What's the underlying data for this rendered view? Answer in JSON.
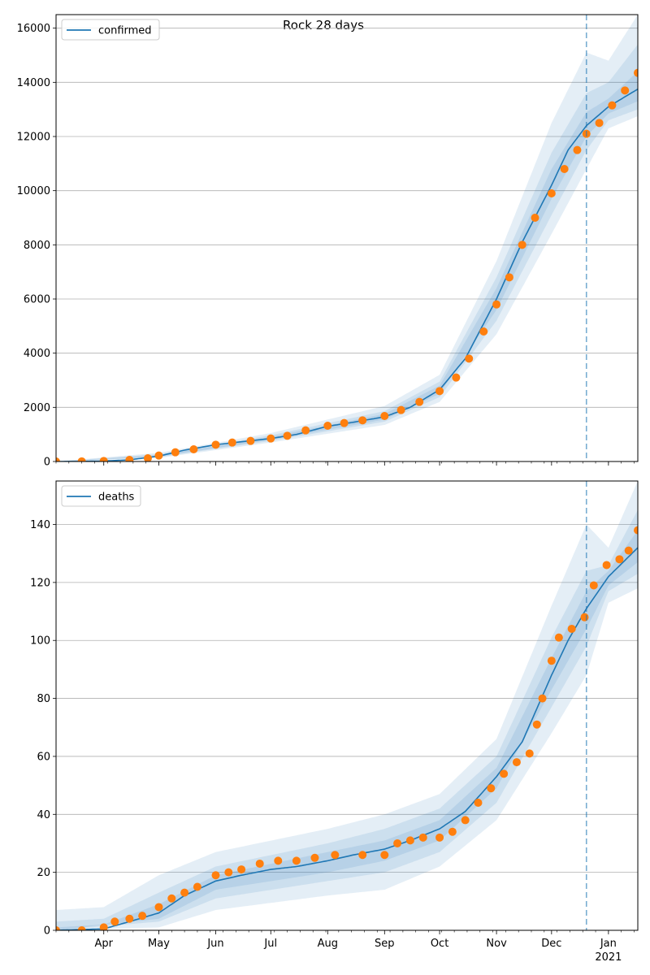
{
  "title": "Rock 28 days",
  "colors": {
    "model_line": "#1f77b4",
    "observed_points": "#ff7f0e",
    "band": "#1f77b4",
    "grid": "#b0b0b0",
    "forecast_marker": "#1f77b4"
  },
  "x_axis": {
    "start_date": "2020-03-06",
    "end_date": "2021-01-17",
    "forecast_start": "2020-12-20",
    "month_ticks": [
      {
        "date": "2020-04-01",
        "label": "Apr",
        "label2": ""
      },
      {
        "date": "2020-05-01",
        "label": "May",
        "label2": ""
      },
      {
        "date": "2020-06-01",
        "label": "Jun",
        "label2": ""
      },
      {
        "date": "2020-07-01",
        "label": "Jul",
        "label2": ""
      },
      {
        "date": "2020-08-01",
        "label": "Aug",
        "label2": ""
      },
      {
        "date": "2020-09-01",
        "label": "Sep",
        "label2": ""
      },
      {
        "date": "2020-10-01",
        "label": "Oct",
        "label2": ""
      },
      {
        "date": "2020-11-01",
        "label": "Nov",
        "label2": ""
      },
      {
        "date": "2020-12-01",
        "label": "Dec",
        "label2": ""
      },
      {
        "date": "2021-01-01",
        "label": "Jan",
        "label2": "2021"
      }
    ]
  },
  "chart_data": [
    {
      "type": "line",
      "legend": "confirmed",
      "legend_position": "top-left",
      "grid": "horizontal",
      "ylim": [
        0,
        16500
      ],
      "yticks": [
        0,
        2000,
        4000,
        6000,
        8000,
        10000,
        12000,
        14000,
        16000
      ],
      "model": [
        [
          "2020-03-06",
          0
        ],
        [
          "2020-03-20",
          5
        ],
        [
          "2020-04-01",
          20
        ],
        [
          "2020-04-15",
          60
        ],
        [
          "2020-05-01",
          200
        ],
        [
          "2020-05-15",
          420
        ],
        [
          "2020-06-01",
          620
        ],
        [
          "2020-06-15",
          730
        ],
        [
          "2020-07-01",
          850
        ],
        [
          "2020-07-15",
          1000
        ],
        [
          "2020-08-01",
          1300
        ],
        [
          "2020-08-15",
          1450
        ],
        [
          "2020-09-01",
          1650
        ],
        [
          "2020-09-15",
          2000
        ],
        [
          "2020-10-01",
          2650
        ],
        [
          "2020-10-15",
          3800
        ],
        [
          "2020-11-01",
          6000
        ],
        [
          "2020-11-15",
          8100
        ],
        [
          "2020-12-01",
          10200
        ],
        [
          "2020-12-10",
          11500
        ],
        [
          "2020-12-20",
          12400
        ],
        [
          "2021-01-01",
          13100
        ],
        [
          "2021-01-17",
          13750
        ]
      ],
      "observed": [
        [
          "2020-03-06",
          0
        ],
        [
          "2020-03-20",
          5
        ],
        [
          "2020-04-01",
          20
        ],
        [
          "2020-04-15",
          60
        ],
        [
          "2020-04-25",
          120
        ],
        [
          "2020-05-01",
          220
        ],
        [
          "2020-05-10",
          340
        ],
        [
          "2020-05-20",
          450
        ],
        [
          "2020-06-01",
          620
        ],
        [
          "2020-06-10",
          700
        ],
        [
          "2020-06-20",
          760
        ],
        [
          "2020-07-01",
          850
        ],
        [
          "2020-07-10",
          950
        ],
        [
          "2020-07-20",
          1150
        ],
        [
          "2020-08-01",
          1320
        ],
        [
          "2020-08-10",
          1420
        ],
        [
          "2020-08-20",
          1520
        ],
        [
          "2020-09-01",
          1680
        ],
        [
          "2020-09-10",
          1900
        ],
        [
          "2020-09-20",
          2200
        ],
        [
          "2020-10-01",
          2600
        ],
        [
          "2020-10-10",
          3100
        ],
        [
          "2020-10-17",
          3800
        ],
        [
          "2020-10-25",
          4800
        ],
        [
          "2020-11-01",
          5800
        ],
        [
          "2020-11-08",
          6800
        ],
        [
          "2020-11-15",
          8000
        ],
        [
          "2020-11-22",
          9000
        ],
        [
          "2020-12-01",
          9900
        ],
        [
          "2020-12-08",
          10800
        ],
        [
          "2020-12-15",
          11500
        ],
        [
          "2020-12-20",
          12100
        ],
        [
          "2020-12-27",
          12500
        ],
        [
          "2021-01-03",
          13150
        ],
        [
          "2021-01-10",
          13700
        ],
        [
          "2021-01-17",
          14350
        ]
      ],
      "bands": [
        {
          "level": "outer",
          "lower": [
            [
              "2020-03-06",
              0
            ],
            [
              "2020-05-01",
              130
            ],
            [
              "2020-07-01",
              700
            ],
            [
              "2020-09-01",
              1350
            ],
            [
              "2020-10-01",
              2200
            ],
            [
              "2020-11-01",
              4700
            ],
            [
              "2020-12-01",
              8400
            ],
            [
              "2020-12-20",
              10800
            ],
            [
              "2021-01-01",
              12300
            ],
            [
              "2021-01-17",
              12750
            ]
          ],
          "upper": [
            [
              "2020-03-06",
              0
            ],
            [
              "2020-05-01",
              320
            ],
            [
              "2020-07-01",
              1050
            ],
            [
              "2020-09-01",
              2050
            ],
            [
              "2020-10-01",
              3200
            ],
            [
              "2020-11-01",
              7400
            ],
            [
              "2020-12-01",
              12500
            ],
            [
              "2020-12-20",
              15100
            ],
            [
              "2021-01-01",
              14800
            ],
            [
              "2021-01-17",
              16500
            ]
          ]
        },
        {
          "level": "middle",
          "lower": [
            [
              "2020-03-06",
              0
            ],
            [
              "2020-05-01",
              160
            ],
            [
              "2020-07-01",
              760
            ],
            [
              "2020-09-01",
              1470
            ],
            [
              "2020-10-01",
              2380
            ],
            [
              "2020-11-01",
              5200
            ],
            [
              "2020-12-01",
              9100
            ],
            [
              "2020-12-20",
              11500
            ],
            [
              "2021-01-01",
              12600
            ],
            [
              "2021-01-17",
              13000
            ]
          ],
          "upper": [
            [
              "2020-03-06",
              0
            ],
            [
              "2020-05-01",
              270
            ],
            [
              "2020-07-01",
              970
            ],
            [
              "2020-09-01",
              1860
            ],
            [
              "2020-10-01",
              2950
            ],
            [
              "2020-11-01",
              6800
            ],
            [
              "2020-12-01",
              11400
            ],
            [
              "2020-12-20",
              13600
            ],
            [
              "2021-01-01",
              14000
            ],
            [
              "2021-01-17",
              15400
            ]
          ]
        },
        {
          "level": "inner",
          "lower": [
            [
              "2020-03-06",
              0
            ],
            [
              "2020-05-01",
              180
            ],
            [
              "2020-07-01",
              800
            ],
            [
              "2020-09-01",
              1550
            ],
            [
              "2020-10-01",
              2500
            ],
            [
              "2020-11-01",
              5600
            ],
            [
              "2020-12-01",
              9700
            ],
            [
              "2020-12-20",
              12000
            ],
            [
              "2021-01-01",
              12850
            ],
            [
              "2021-01-17",
              13300
            ]
          ],
          "upper": [
            [
              "2020-03-06",
              0
            ],
            [
              "2020-05-01",
              230
            ],
            [
              "2020-07-01",
              910
            ],
            [
              "2020-09-01",
              1760
            ],
            [
              "2020-10-01",
              2800
            ],
            [
              "2020-11-01",
              6400
            ],
            [
              "2020-12-01",
              10800
            ],
            [
              "2020-12-20",
              12900
            ],
            [
              "2021-01-01",
              13400
            ],
            [
              "2021-01-17",
              14400
            ]
          ]
        }
      ]
    },
    {
      "type": "line",
      "legend": "deaths",
      "legend_position": "top-left",
      "grid": "horizontal",
      "ylim": [
        0,
        155
      ],
      "yticks": [
        0,
        20,
        40,
        60,
        80,
        100,
        120,
        140
      ],
      "model": [
        [
          "2020-03-06",
          0
        ],
        [
          "2020-04-01",
          0.5
        ],
        [
          "2020-04-15",
          3
        ],
        [
          "2020-05-01",
          6
        ],
        [
          "2020-05-15",
          12
        ],
        [
          "2020-06-01",
          17
        ],
        [
          "2020-06-15",
          19
        ],
        [
          "2020-07-01",
          21
        ],
        [
          "2020-07-15",
          22
        ],
        [
          "2020-08-01",
          24
        ],
        [
          "2020-08-15",
          26
        ],
        [
          "2020-09-01",
          28
        ],
        [
          "2020-09-15",
          31
        ],
        [
          "2020-10-01",
          35
        ],
        [
          "2020-10-15",
          41
        ],
        [
          "2020-11-01",
          53
        ],
        [
          "2020-11-15",
          65
        ],
        [
          "2020-12-01",
          88
        ],
        [
          "2020-12-10",
          100
        ],
        [
          "2020-12-20",
          111
        ],
        [
          "2021-01-01",
          122
        ],
        [
          "2021-01-17",
          132
        ]
      ],
      "observed": [
        [
          "2020-03-06",
          0
        ],
        [
          "2020-03-20",
          0
        ],
        [
          "2020-04-01",
          1
        ],
        [
          "2020-04-07",
          3
        ],
        [
          "2020-04-15",
          4
        ],
        [
          "2020-04-22",
          5
        ],
        [
          "2020-05-01",
          8
        ],
        [
          "2020-05-08",
          11
        ],
        [
          "2020-05-15",
          13
        ],
        [
          "2020-05-22",
          15
        ],
        [
          "2020-06-01",
          19
        ],
        [
          "2020-06-08",
          20
        ],
        [
          "2020-06-15",
          21
        ],
        [
          "2020-06-25",
          23
        ],
        [
          "2020-07-05",
          24
        ],
        [
          "2020-07-15",
          24
        ],
        [
          "2020-07-25",
          25
        ],
        [
          "2020-08-05",
          26
        ],
        [
          "2020-08-20",
          26
        ],
        [
          "2020-09-01",
          26
        ],
        [
          "2020-09-08",
          30
        ],
        [
          "2020-09-15",
          31
        ],
        [
          "2020-09-22",
          32
        ],
        [
          "2020-10-01",
          32
        ],
        [
          "2020-10-08",
          34
        ],
        [
          "2020-10-15",
          38
        ],
        [
          "2020-10-22",
          44
        ],
        [
          "2020-10-29",
          49
        ],
        [
          "2020-11-05",
          54
        ],
        [
          "2020-11-12",
          58
        ],
        [
          "2020-11-19",
          61
        ],
        [
          "2020-11-23",
          71
        ],
        [
          "2020-11-26",
          80
        ],
        [
          "2020-12-01",
          93
        ],
        [
          "2020-12-05",
          101
        ],
        [
          "2020-12-12",
          104
        ],
        [
          "2020-12-19",
          108
        ],
        [
          "2020-12-24",
          119
        ],
        [
          "2020-12-31",
          126
        ],
        [
          "2021-01-07",
          128
        ],
        [
          "2021-01-12",
          131
        ],
        [
          "2021-01-17",
          138
        ]
      ],
      "bands": [
        {
          "level": "outer",
          "lower": [
            [
              "2020-03-06",
              0
            ],
            [
              "2020-05-01",
              1
            ],
            [
              "2020-06-01",
              7
            ],
            [
              "2020-08-01",
              12
            ],
            [
              "2020-09-01",
              14
            ],
            [
              "2020-10-01",
              22
            ],
            [
              "2020-11-01",
              38
            ],
            [
              "2020-12-01",
              68
            ],
            [
              "2020-12-20",
              88
            ],
            [
              "2021-01-01",
              113
            ],
            [
              "2021-01-17",
              118
            ]
          ],
          "upper": [
            [
              "2020-03-06",
              7
            ],
            [
              "2020-04-01",
              8
            ],
            [
              "2020-05-01",
              19
            ],
            [
              "2020-06-01",
              27
            ],
            [
              "2020-08-01",
              35
            ],
            [
              "2020-09-01",
              40
            ],
            [
              "2020-10-01",
              47
            ],
            [
              "2020-11-01",
              66
            ],
            [
              "2020-12-01",
              112
            ],
            [
              "2020-12-20",
              140
            ],
            [
              "2021-01-01",
              132
            ],
            [
              "2021-01-17",
              155
            ]
          ]
        },
        {
          "level": "middle",
          "lower": [
            [
              "2020-03-06",
              0
            ],
            [
              "2020-05-01",
              3
            ],
            [
              "2020-06-01",
              11
            ],
            [
              "2020-08-01",
              17
            ],
            [
              "2020-09-01",
              20
            ],
            [
              "2020-10-01",
              27
            ],
            [
              "2020-11-01",
              44
            ],
            [
              "2020-12-01",
              77
            ],
            [
              "2020-12-20",
              98
            ],
            [
              "2021-01-01",
              117
            ],
            [
              "2021-01-17",
              123
            ]
          ],
          "upper": [
            [
              "2020-03-06",
              3
            ],
            [
              "2020-04-01",
              4
            ],
            [
              "2020-05-01",
              13
            ],
            [
              "2020-06-01",
              22
            ],
            [
              "2020-08-01",
              30
            ],
            [
              "2020-09-01",
              35
            ],
            [
              "2020-10-01",
              42
            ],
            [
              "2020-11-01",
              60
            ],
            [
              "2020-12-01",
              101
            ],
            [
              "2020-12-20",
              124
            ],
            [
              "2021-01-01",
              126
            ],
            [
              "2021-01-17",
              145
            ]
          ]
        },
        {
          "level": "inner",
          "lower": [
            [
              "2020-03-06",
              0
            ],
            [
              "2020-05-01",
              4
            ],
            [
              "2020-06-01",
              14
            ],
            [
              "2020-08-01",
              20
            ],
            [
              "2020-09-01",
              24
            ],
            [
              "2020-10-01",
              31
            ],
            [
              "2020-11-01",
              49
            ],
            [
              "2020-12-01",
              83
            ],
            [
              "2020-12-20",
              104
            ],
            [
              "2021-01-01",
              119
            ],
            [
              "2021-01-17",
              127
            ]
          ],
          "upper": [
            [
              "2020-03-06",
              1
            ],
            [
              "2020-04-01",
              2
            ],
            [
              "2020-05-01",
              9
            ],
            [
              "2020-06-01",
              19
            ],
            [
              "2020-08-01",
              27
            ],
            [
              "2020-09-01",
              31
            ],
            [
              "2020-10-01",
              38
            ],
            [
              "2020-11-01",
              56
            ],
            [
              "2020-12-01",
              94
            ],
            [
              "2020-12-20",
              117
            ],
            [
              "2021-01-01",
              124
            ],
            [
              "2021-01-17",
              138
            ]
          ]
        }
      ]
    }
  ]
}
